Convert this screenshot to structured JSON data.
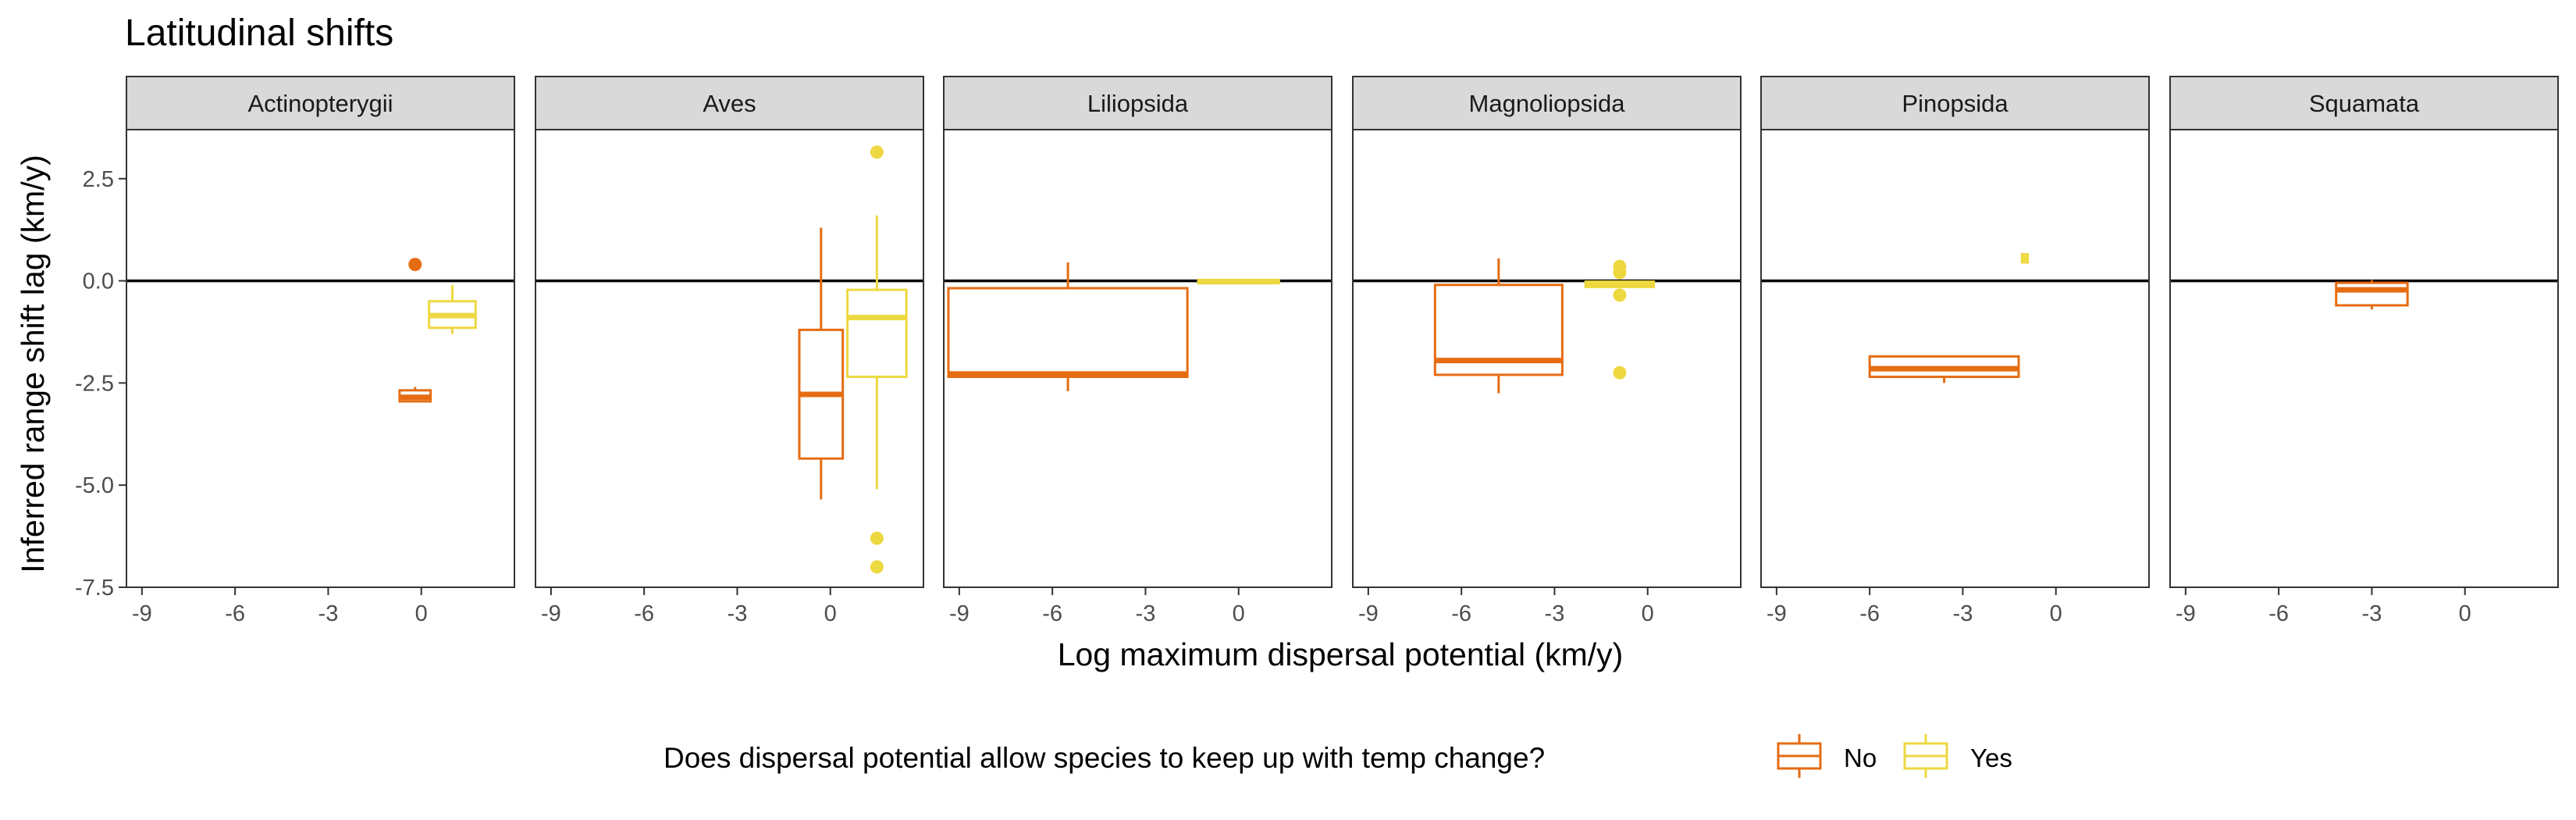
{
  "chart_data": {
    "type": "boxplot",
    "title": "Latitudinal shifts",
    "xlabel": "Log maximum dispersal potential (km/y)",
    "ylabel": "Inferred range shift lag (km/y)",
    "xticks": [
      -9,
      -6,
      -3,
      0
    ],
    "yticks": [
      2.5,
      0.0,
      -2.5,
      -5.0,
      -7.5
    ],
    "ytick_labels": [
      "2.5",
      "0.0",
      "-2.5",
      "-5.0",
      "-7.5"
    ],
    "xlim": [
      -9.5,
      3.0
    ],
    "ylim": [
      -7.5,
      3.7
    ],
    "reference_line_y": 0,
    "legend": {
      "title": "Does dispersal potential allow species to keep up with temp change?",
      "position": "bottom",
      "entries": [
        {
          "key": "No",
          "label": "No",
          "color": "#E66C12"
        },
        {
          "key": "Yes",
          "label": "Yes",
          "color": "#EDD840"
        }
      ]
    },
    "panels": [
      {
        "name": "Actinopterygii",
        "boxes": [
          {
            "group": "No",
            "x_center": -0.2,
            "x_width": 1.0,
            "q1": -2.95,
            "median": -2.85,
            "q3": -2.68,
            "whisker_low": -2.95,
            "whisker_high": -2.6,
            "outliers": [
              0.4
            ]
          },
          {
            "group": "Yes",
            "x_center": 1.0,
            "x_width": 1.5,
            "q1": -1.15,
            "median": -0.85,
            "q3": -0.5,
            "whisker_low": -1.3,
            "whisker_high": -0.1,
            "outliers": []
          }
        ]
      },
      {
        "name": "Aves",
        "boxes": [
          {
            "group": "No",
            "x_center": -0.3,
            "x_width": 1.4,
            "q1": -4.35,
            "median": -2.78,
            "q3": -1.2,
            "whisker_low": -5.35,
            "whisker_high": 1.3,
            "outliers": []
          },
          {
            "group": "Yes",
            "x_center": 1.5,
            "x_width": 1.9,
            "q1": -2.35,
            "median": -0.9,
            "q3": -0.22,
            "whisker_low": -5.1,
            "whisker_high": 1.6,
            "outliers": [
              3.15,
              -6.3,
              -7.0
            ]
          }
        ]
      },
      {
        "name": "Liliopsida",
        "boxes": [
          {
            "group": "No",
            "x_center": -5.5,
            "x_width": 7.7,
            "q1": -2.35,
            "median": -2.28,
            "q3": -0.18,
            "whisker_low": -2.7,
            "whisker_high": 0.45,
            "outliers": []
          },
          {
            "group": "Yes",
            "x_center": 0.0,
            "x_width": 2.6,
            "q1": -0.06,
            "median": -0.02,
            "q3": 0.02,
            "whisker_low": -0.06,
            "whisker_high": 0.02,
            "outliers": []
          }
        ]
      },
      {
        "name": "Magnoliopsida",
        "boxes": [
          {
            "group": "No",
            "x_center": -4.8,
            "x_width": 4.1,
            "q1": -2.3,
            "median": -1.95,
            "q3": -0.1,
            "whisker_low": -2.75,
            "whisker_high": 0.55,
            "outliers": []
          },
          {
            "group": "Yes",
            "x_center": -0.9,
            "x_width": 2.2,
            "q1": -0.15,
            "median": -0.08,
            "q3": -0.02,
            "whisker_low": -0.15,
            "whisker_high": -0.02,
            "outliers": [
              0.35,
              0.2,
              -0.35,
              -2.25
            ]
          }
        ]
      },
      {
        "name": "Pinopsida",
        "boxes": [
          {
            "group": "No",
            "x_center": -3.6,
            "x_width": 4.8,
            "q1": -2.35,
            "median": -2.15,
            "q3": -1.85,
            "whisker_low": -2.5,
            "whisker_high": -1.85,
            "outliers": []
          },
          {
            "group": "Yes",
            "x_center": -1.0,
            "x_width": 0.18,
            "q1": 0.45,
            "median": 0.55,
            "q3": 0.65,
            "whisker_low": 0.45,
            "whisker_high": 0.65,
            "outliers": []
          }
        ]
      },
      {
        "name": "Squamata",
        "boxes": [
          {
            "group": "No",
            "x_center": -3.0,
            "x_width": 2.3,
            "q1": -0.6,
            "median": -0.22,
            "q3": -0.05,
            "whisker_low": -0.7,
            "whisker_high": 0.02,
            "outliers": []
          }
        ]
      }
    ]
  }
}
